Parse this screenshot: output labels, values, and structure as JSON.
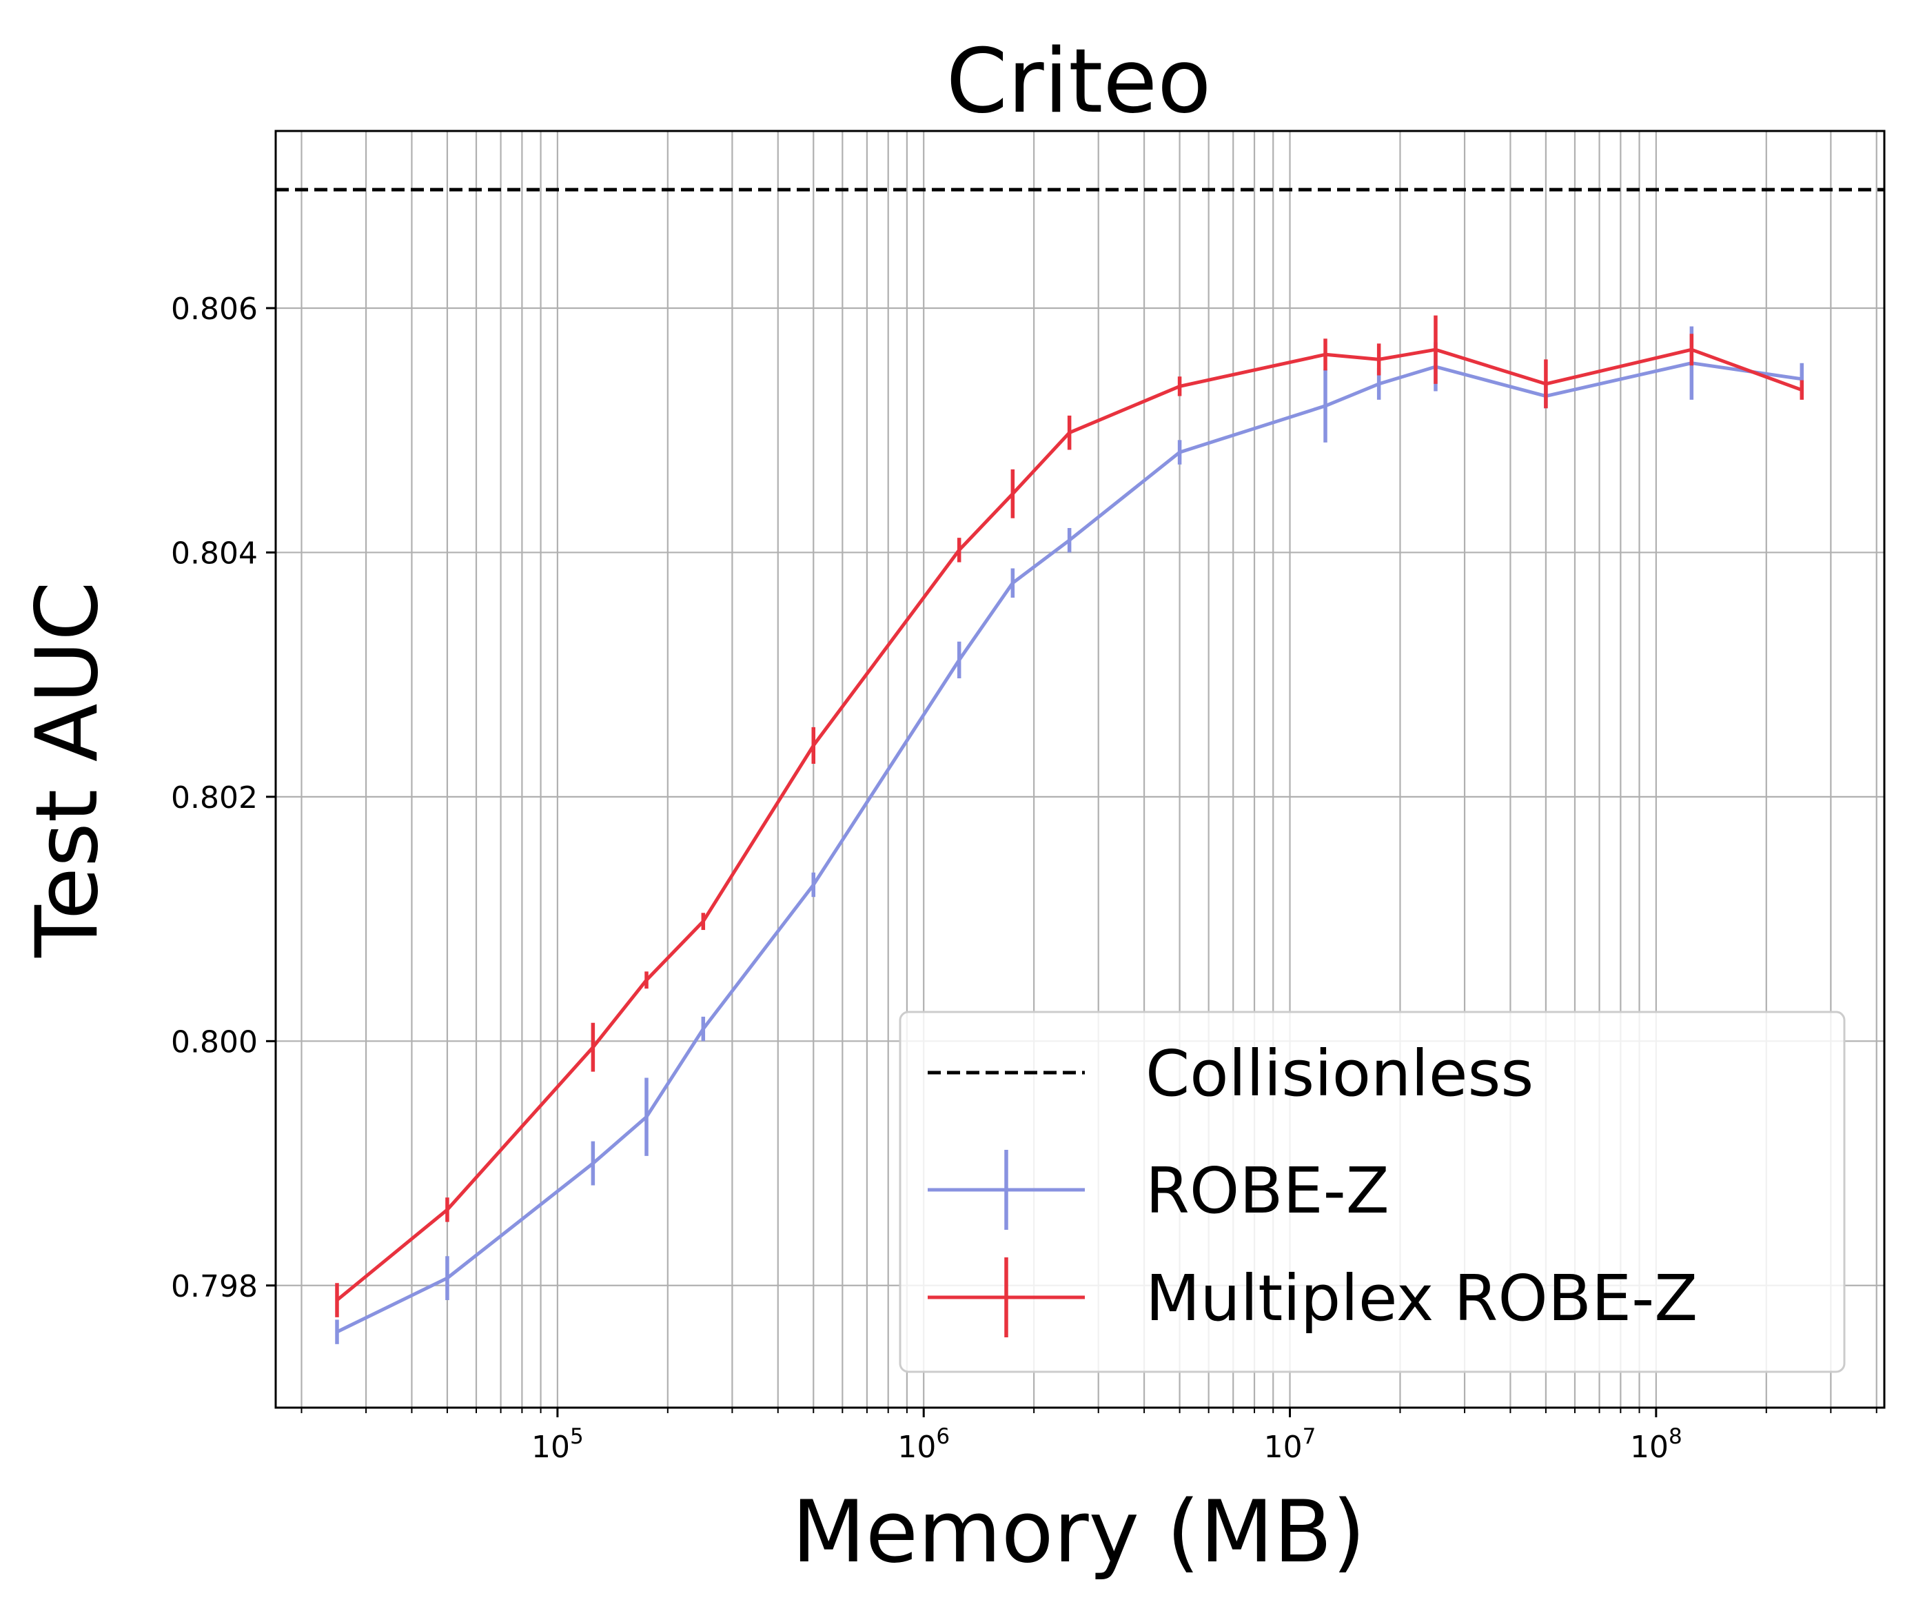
{
  "chart_data": {
    "type": "line",
    "title": "Criteo",
    "xlabel": "Memory (MB)",
    "ylabel": "Test AUC",
    "x_scale": "log",
    "xlim": [
      17000,
      420000000
    ],
    "ylim": [
      0.797,
      0.80745
    ],
    "grid": true,
    "legend_position": "lower-right",
    "x_tick_labels": [
      {
        "value": 100000,
        "base": "10",
        "exp": "5"
      },
      {
        "value": 1000000,
        "base": "10",
        "exp": "6"
      },
      {
        "value": 10000000,
        "base": "10",
        "exp": "7"
      },
      {
        "value": 100000000,
        "base": "10",
        "exp": "8"
      }
    ],
    "y_ticks": [
      0.798,
      0.8,
      0.802,
      0.804,
      0.806
    ],
    "y_tick_labels": [
      "0.798",
      "0.800",
      "0.802",
      "0.804",
      "0.806"
    ],
    "baseline": {
      "name": "Collisionless",
      "value": 0.80697,
      "color": "#000000",
      "style": "dashed"
    },
    "series": [
      {
        "name": "ROBE-Z",
        "color": "#8892e0",
        "x": [
          25000,
          50000,
          125000,
          175000,
          250000,
          500000,
          1250000,
          1750000,
          2500000,
          5000000,
          12500000,
          17500000,
          25000000,
          50000000,
          125000000,
          250000000
        ],
        "y": [
          0.79762,
          0.79806,
          0.799,
          0.79938,
          0.8001,
          0.80128,
          0.80312,
          0.80375,
          0.8041,
          0.80482,
          0.8052,
          0.80538,
          0.80552,
          0.80528,
          0.80555,
          0.80542
        ],
        "err": [
          0.0001,
          0.00018,
          0.00018,
          0.00032,
          0.0001,
          0.0001,
          0.00015,
          0.00012,
          0.0001,
          0.0001,
          0.0003,
          0.00013,
          0.0002,
          0.0001,
          0.0003,
          0.00013
        ]
      },
      {
        "name": "Multiplex ROBE-Z",
        "color": "#e8323e",
        "x": [
          25000,
          50000,
          125000,
          175000,
          250000,
          500000,
          1250000,
          1750000,
          2500000,
          5000000,
          12500000,
          17500000,
          25000000,
          50000000,
          125000000,
          250000000
        ],
        "y": [
          0.79788,
          0.79862,
          0.79995,
          0.8005,
          0.80098,
          0.80242,
          0.80402,
          0.80448,
          0.80498,
          0.80536,
          0.80562,
          0.80558,
          0.80566,
          0.80538,
          0.80566,
          0.80533
        ],
        "err": [
          0.00014,
          0.0001,
          0.0002,
          7e-05,
          7e-05,
          0.00015,
          0.0001,
          0.0002,
          0.00014,
          8e-05,
          0.00013,
          0.00013,
          0.00028,
          0.0002,
          0.00013,
          8e-05
        ]
      }
    ]
  }
}
